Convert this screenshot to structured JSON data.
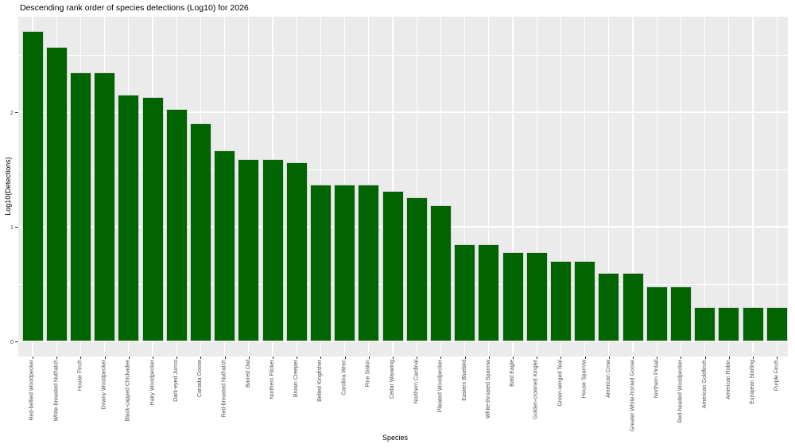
{
  "chart_data": {
    "type": "bar",
    "title": "Descending rank order of species detections (Log10) for 2026",
    "xlabel": "Species",
    "ylabel": "Log10(Detections)",
    "categories": [
      "Red-bellied Woodpecker",
      "White-breasted Nuthatch",
      "House Finch",
      "Downy Woodpecker",
      "Black-capped Chickadee",
      "Hairy Woodpecker",
      "Dark-eyed Junco",
      "Canada Goose",
      "Red-breasted Nuthatch",
      "Barred Owl",
      "Northern Flicker",
      "Brown Creeper",
      "Belted Kingfisher",
      "Carolina Wren",
      "Pine Siskin",
      "Cedar Waxwing",
      "Northern Cardinal",
      "Pileated Woodpecker",
      "Eastern Bluebird",
      "White-throated Sparrow",
      "Bald Eagle",
      "Golden-crowned Kinglet",
      "Green-winged Teal",
      "House Sparrow",
      "American Crow",
      "Greater White-fronted Goose",
      "Northern Pintail",
      "Red-headed Woodpecker",
      "American Goldfinch",
      "American Robin",
      "European Starling",
      "Purple Finch"
    ],
    "values": [
      2.71,
      2.57,
      2.35,
      2.35,
      2.15,
      2.13,
      2.03,
      1.9,
      1.67,
      1.59,
      1.59,
      1.56,
      1.37,
      1.37,
      1.37,
      1.31,
      1.26,
      1.19,
      0.85,
      0.85,
      0.78,
      0.78,
      0.7,
      0.7,
      0.6,
      0.6,
      0.48,
      0.48,
      0.3,
      0.3,
      0.3,
      0.3
    ],
    "yticks": [
      0,
      1,
      2
    ],
    "ytick_minor": [
      0.5,
      1.5,
      2.5
    ],
    "ylim": [
      -0.14,
      2.84
    ],
    "grid": "on",
    "legend": "none",
    "colors": {
      "bar_fill": "#006400",
      "bar_stroke": "#D6D6D6",
      "panel_background": "#EBEBEB",
      "gridline": "#FFFFFF",
      "tick_mark": "#333333",
      "axis_text": "#4D4D4D",
      "title_text": "#000000"
    }
  }
}
